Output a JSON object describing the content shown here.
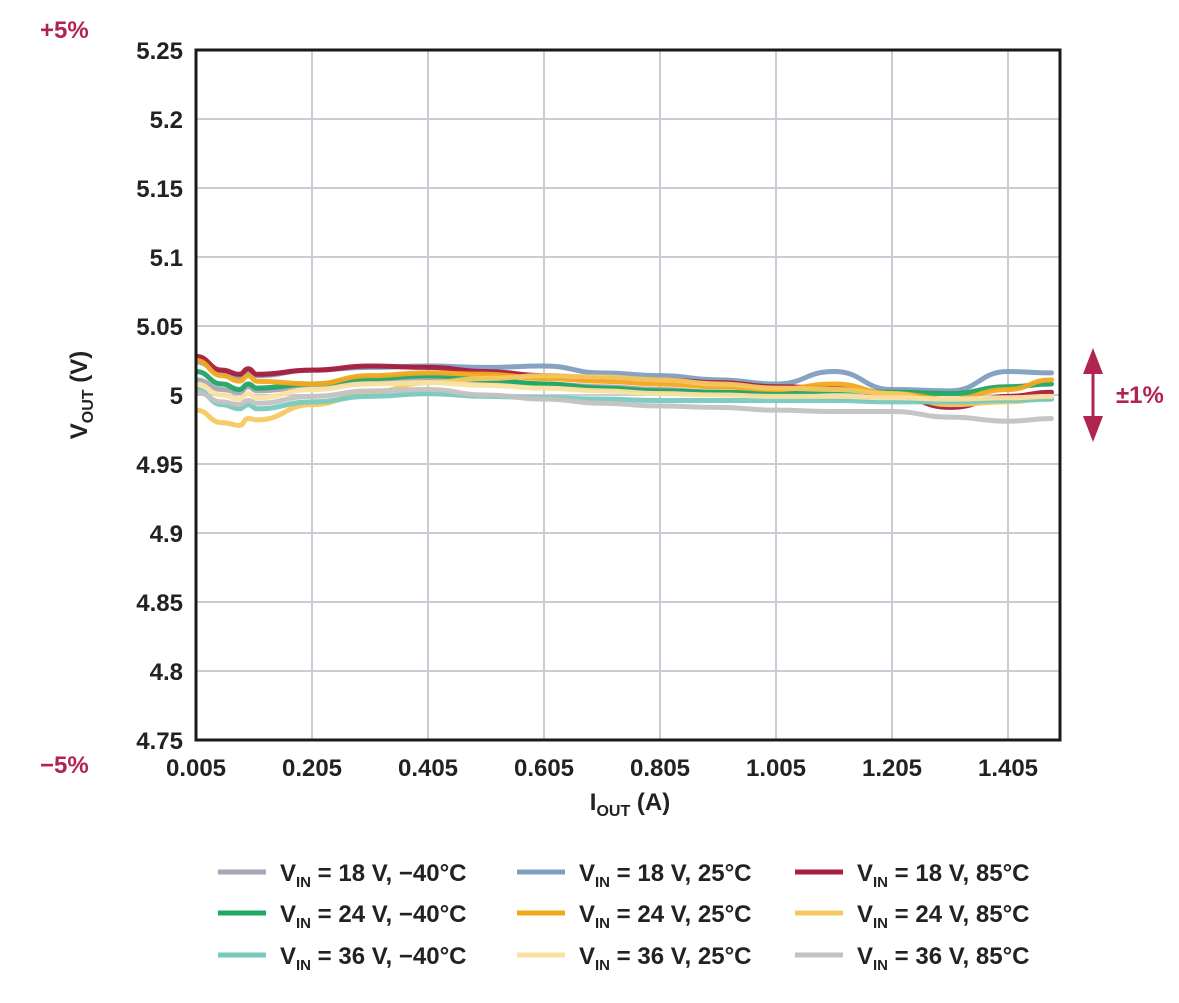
{
  "chart_data": {
    "type": "line",
    "title": "",
    "xlabel": {
      "main": "I",
      "sub": "OUT",
      "unit": " (A)"
    },
    "ylabel": {
      "main": "V",
      "sub": "OUT",
      "unit": " (V)"
    },
    "xlim": [
      0.005,
      1.48
    ],
    "ylim": [
      4.75,
      5.25
    ],
    "xticks": [
      0.005,
      0.205,
      0.405,
      0.605,
      0.805,
      1.005,
      1.205,
      1.405
    ],
    "xtick_labels": [
      "0.005",
      "0.205",
      "0.405",
      "0.605",
      "0.805",
      "1.005",
      "1.205",
      "1.405"
    ],
    "yticks": [
      4.75,
      4.8,
      4.85,
      4.9,
      4.95,
      5,
      5.05,
      5.1,
      5.15,
      5.2,
      5.25
    ],
    "ytick_labels": [
      "4.75",
      "4.8",
      "4.85",
      "4.9",
      "4.95",
      "5",
      "5.05",
      "5.1",
      "5.15",
      "5.2",
      "5.25"
    ],
    "grid": true,
    "annotations": {
      "top_pct": "+5%",
      "bottom_pct": "−5%",
      "band_label": "±1%",
      "band_color": "#b0244f"
    },
    "x": [
      0.005,
      0.05,
      0.08,
      0.095,
      0.11,
      0.205,
      0.305,
      0.405,
      0.505,
      0.605,
      0.705,
      0.805,
      0.905,
      1.005,
      1.105,
      1.205,
      1.305,
      1.405,
      1.48
    ],
    "series": [
      {
        "name_main": "V",
        "name_sub": "IN",
        "name_rest": " = 18 V, −40°C",
        "color": "#a6a6b4",
        "values": [
          5.011,
          5.004,
          5.002,
          5.006,
          5.003,
          5.006,
          5.009,
          5.011,
          5.01,
          5.008,
          5.006,
          5.004,
          5.002,
          5.0,
          4.998,
          4.997,
          4.996,
          4.996,
          4.997
        ]
      },
      {
        "name_main": "V",
        "name_sub": "IN",
        "name_rest": " = 18 V, 25°C",
        "color": "#7f9fbf",
        "values": [
          5.024,
          5.016,
          5.013,
          5.017,
          5.014,
          5.018,
          5.02,
          5.021,
          5.02,
          5.021,
          5.016,
          5.014,
          5.011,
          5.008,
          5.017,
          5.004,
          5.003,
          5.017,
          5.016
        ]
      },
      {
        "name_main": "V",
        "name_sub": "IN",
        "name_rest": " = 18 V, 85°C",
        "color": "#a81e3c",
        "values": [
          5.028,
          5.018,
          5.015,
          5.019,
          5.015,
          5.018,
          5.021,
          5.02,
          5.017,
          5.014,
          5.012,
          5.011,
          5.009,
          5.006,
          5.005,
          5.0,
          4.991,
          4.999,
          5.002
        ]
      },
      {
        "name_main": "V",
        "name_sub": "IN",
        "name_rest": " = 24 V, −40°C",
        "color": "#1fa764",
        "values": [
          5.017,
          5.008,
          5.004,
          5.008,
          5.005,
          5.008,
          5.012,
          5.014,
          5.011,
          5.008,
          5.005,
          5.003,
          5.002,
          5.001,
          5.003,
          5.002,
          5.001,
          5.006,
          5.008
        ]
      },
      {
        "name_main": "V",
        "name_sub": "IN",
        "name_rest": " = 24 V, 25°C",
        "color": "#f2a81d",
        "values": [
          5.025,
          5.014,
          5.01,
          5.014,
          5.01,
          5.008,
          5.014,
          5.016,
          5.015,
          5.012,
          5.01,
          5.008,
          5.006,
          5.004,
          5.008,
          5.001,
          4.997,
          5.004,
          5.011
        ]
      },
      {
        "name_main": "V",
        "name_sub": "IN",
        "name_rest": " = 24 V, 85°C",
        "color": "#f6c860",
        "values": [
          4.989,
          4.98,
          4.978,
          4.983,
          4.982,
          4.993,
          5.002,
          5.009,
          5.012,
          5.014,
          5.013,
          5.011,
          5.008,
          5.005,
          5.004,
          5.001,
          4.993,
          4.995,
          4.998
        ]
      },
      {
        "name_main": "V",
        "name_sub": "IN",
        "name_rest": " = 36 V, −40°C",
        "color": "#78c9bf",
        "values": [
          5.004,
          4.993,
          4.99,
          4.993,
          4.99,
          4.995,
          4.999,
          5.001,
          4.999,
          4.998,
          4.997,
          4.996,
          4.996,
          4.996,
          4.996,
          4.995,
          4.995,
          4.996,
          4.997
        ]
      },
      {
        "name_main": "V",
        "name_sub": "IN",
        "name_rest": " = 36 V, 25°C",
        "color": "#fbe0a0",
        "values": [
          5.008,
          5.0,
          4.997,
          5.001,
          4.998,
          5.004,
          5.008,
          5.009,
          5.007,
          5.005,
          5.003,
          5.001,
          5.0,
          4.999,
          4.999,
          4.998,
          4.997,
          4.998,
          4.999
        ]
      },
      {
        "name_main": "V",
        "name_sub": "IN",
        "name_rest": " = 36 V, 85°C",
        "color": "#c2c2c2",
        "values": [
          5.002,
          4.995,
          4.993,
          4.996,
          4.994,
          4.999,
          5.003,
          5.004,
          5.0,
          4.997,
          4.994,
          4.992,
          4.991,
          4.989,
          4.988,
          4.988,
          4.984,
          4.981,
          4.983
        ]
      }
    ]
  }
}
